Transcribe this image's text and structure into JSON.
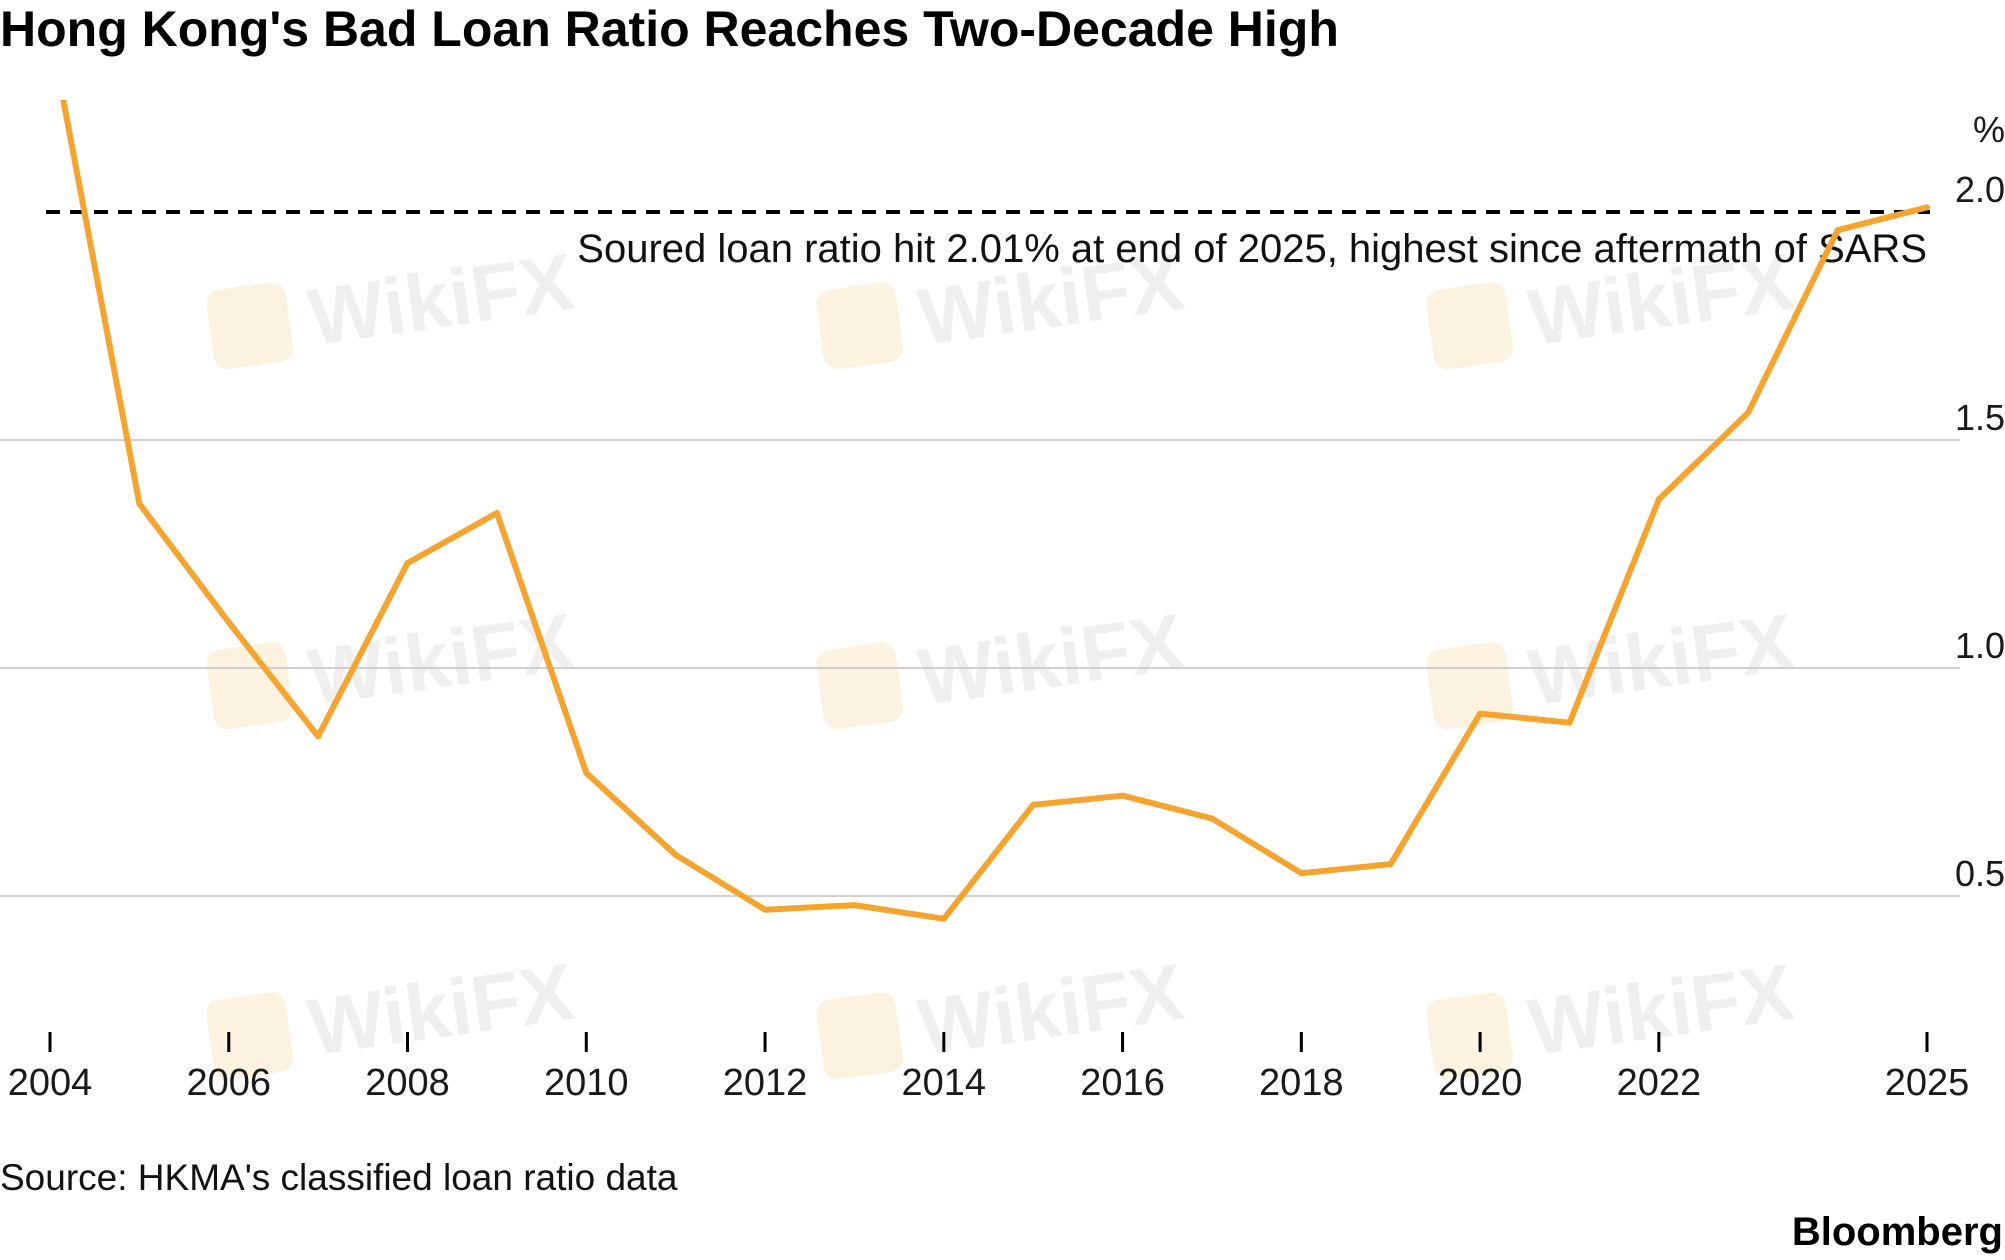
{
  "title": "Hong Kong's Bad Loan Ratio Reaches Two-Decade High",
  "source": "Source: HKMA's classified loan ratio data",
  "brand": "Bloomberg",
  "watermark": "WikiFX",
  "colors": {
    "line": "#f5a42f",
    "grid": "#cfcfcf",
    "reference": "#000000",
    "watermark_icon": "#f7e3b8"
  },
  "chart_data": {
    "type": "line",
    "title": "Hong Kong's Bad Loan Ratio Reaches Two-Decade High",
    "xlabel": "",
    "ylabel": "",
    "y_unit": "%",
    "xlim": [
      2004,
      2025
    ],
    "ylim": [
      0.25,
      2.2
    ],
    "y_ticks": [
      {
        "value": 0.5,
        "label": "0.5"
      },
      {
        "value": 1.0,
        "label": "1.0"
      },
      {
        "value": 1.5,
        "label": "1.5"
      },
      {
        "value": 2.0,
        "label": "2.0"
      }
    ],
    "x_ticks": [
      {
        "value": 2004,
        "label": "2004"
      },
      {
        "value": 2006,
        "label": "2006"
      },
      {
        "value": 2008,
        "label": "2008"
      },
      {
        "value": 2010,
        "label": "2010"
      },
      {
        "value": 2012,
        "label": "2012"
      },
      {
        "value": 2014,
        "label": "2014"
      },
      {
        "value": 2016,
        "label": "2016"
      },
      {
        "value": 2018,
        "label": "2018"
      },
      {
        "value": 2020,
        "label": "2020"
      },
      {
        "value": 2022,
        "label": "2022"
      },
      {
        "value": 2025,
        "label": "2025"
      }
    ],
    "grid": "horizontal",
    "series": [
      {
        "x": [
          2004,
          2005,
          2006,
          2007,
          2008,
          2009,
          2010,
          2011,
          2012,
          2013,
          2014,
          2015,
          2016,
          2017,
          2018,
          2019,
          2020,
          2021,
          2022,
          2023,
          2024,
          2025
        ],
        "values": [
          2.4,
          1.36,
          1.1,
          0.85,
          1.23,
          1.34,
          0.77,
          0.59,
          0.47,
          0.48,
          0.45,
          0.7,
          0.72,
          0.67,
          0.55,
          0.57,
          0.9,
          0.88,
          1.37,
          1.56,
          1.96,
          2.01
        ]
      }
    ],
    "reference_line": {
      "value": 2.0,
      "style": "dashed",
      "label": "Soured loan ratio hit 2.01% at end of 2025, highest since aftermath of SARS"
    }
  }
}
